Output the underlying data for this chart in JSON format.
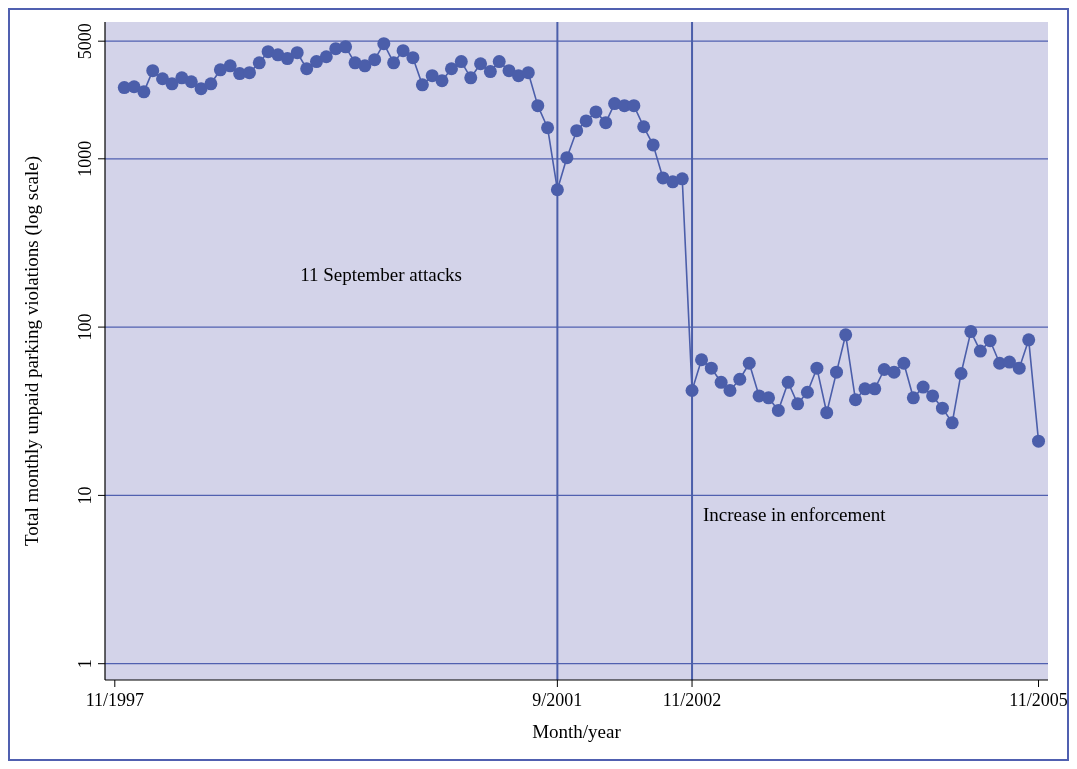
{
  "chart_data": {
    "type": "line",
    "xlabel": "Month/year",
    "ylabel": "Total monthly unpaid parking violations (log scale)",
    "x": [
      "1997-12",
      "1998-01",
      "1998-02",
      "1998-03",
      "1998-04",
      "1998-05",
      "1998-06",
      "1998-07",
      "1998-08",
      "1998-09",
      "1998-10",
      "1998-11",
      "1998-12",
      "1999-01",
      "1999-02",
      "1999-03",
      "1999-04",
      "1999-05",
      "1999-06",
      "1999-07",
      "1999-08",
      "1999-09",
      "1999-10",
      "1999-11",
      "1999-12",
      "2000-01",
      "2000-02",
      "2000-03",
      "2000-04",
      "2000-05",
      "2000-06",
      "2000-07",
      "2000-08",
      "2000-09",
      "2000-10",
      "2000-11",
      "2000-12",
      "2001-01",
      "2001-02",
      "2001-03",
      "2001-04",
      "2001-05",
      "2001-06",
      "2001-07",
      "2001-08",
      "2001-09",
      "2001-10",
      "2001-11",
      "2001-12",
      "2002-01",
      "2002-02",
      "2002-03",
      "2002-04",
      "2002-05",
      "2002-06",
      "2002-07",
      "2002-08",
      "2002-09",
      "2002-10",
      "2002-11",
      "2002-12",
      "2003-01",
      "2003-02",
      "2003-03",
      "2003-04",
      "2003-05",
      "2003-06",
      "2003-07",
      "2003-08",
      "2003-09",
      "2003-10",
      "2003-11",
      "2003-12",
      "2004-01",
      "2004-02",
      "2004-03",
      "2004-04",
      "2004-05",
      "2004-06",
      "2004-07",
      "2004-08",
      "2004-09",
      "2004-10",
      "2004-11",
      "2004-12",
      "2005-01",
      "2005-02",
      "2005-03",
      "2005-04",
      "2005-05",
      "2005-06",
      "2005-07",
      "2005-08",
      "2005-09",
      "2005-10",
      "2005-11"
    ],
    "series": [
      {
        "color": "#4b5eaa",
        "values": [
          2650,
          2680,
          2500,
          3340,
          2990,
          2790,
          3030,
          2870,
          2610,
          2790,
          3380,
          3570,
          3210,
          3250,
          3720,
          4330,
          4150,
          3940,
          4270,
          3430,
          3780,
          4040,
          4510,
          4630,
          3720,
          3570,
          3880,
          4830,
          3720,
          4390,
          3990,
          2750,
          3120,
          2910,
          3430,
          3780,
          3030,
          3670,
          3300,
          3780,
          3340,
          3120,
          3250,
          2070,
          1530,
          655,
          1015,
          1470,
          1680,
          1900,
          1640,
          2130,
          2070,
          2070,
          1550,
          1210,
          770,
          730,
          760,
          42,
          64,
          57,
          47,
          42,
          49,
          61,
          39,
          38,
          32,
          47,
          35,
          41,
          57,
          31,
          54,
          90,
          37,
          43,
          43,
          56,
          54,
          61,
          38,
          44,
          39,
          33,
          27,
          53,
          94,
          72,
          83,
          61,
          62,
          57,
          84,
          21
        ]
      }
    ],
    "log": "y",
    "ylim": [
      0.8,
      6500
    ],
    "yticks": [
      1,
      10,
      100,
      1000,
      5000
    ],
    "grid": "y",
    "marker": "circle",
    "line_style": "solid",
    "xlim": [
      "1997-10",
      "2005-12"
    ],
    "xticks": [
      {
        "value": "1997-11",
        "label": "11/1997"
      },
      {
        "value": "2001-09",
        "label": "9/2001"
      },
      {
        "value": "2002-11",
        "label": "11/2002"
      },
      {
        "value": "2005-11",
        "label": "11/2005"
      }
    ],
    "annotations": [
      "11 September attacks"
    ],
    "ref_lines": [
      {
        "axis": "x",
        "value": "2001-09",
        "color": "#4b5eaa"
      },
      {
        "axis": "x",
        "value": "2002-11",
        "label": "Increase in enforcement",
        "color": "#4b5eaa"
      }
    ]
  }
}
